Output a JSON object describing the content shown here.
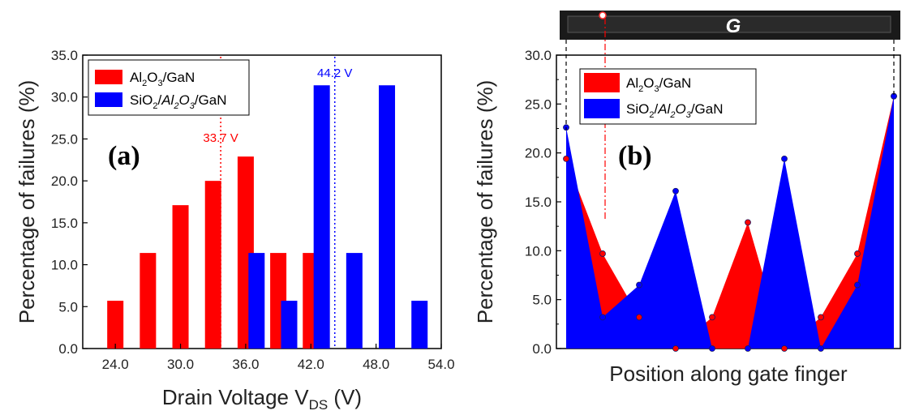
{
  "chart_data": [
    {
      "type": "bar",
      "panel_label": "(a)",
      "xlabel": "Drain Voltage V",
      "xlabel_sub": "DS",
      "xlabel_unit": " (V)",
      "ylabel": "Percentage of failures (%)",
      "xlim": [
        21.0,
        54.0
      ],
      "ylim": [
        0,
        35
      ],
      "xticks": [
        "24.0",
        "30.0",
        "36.0",
        "42.0",
        "48.0",
        "54.0"
      ],
      "xtick_values": [
        24,
        30,
        36,
        42,
        48,
        54
      ],
      "yticks": [
        "0.0",
        "5.0",
        "10.0",
        "15.0",
        "20.0",
        "25.0",
        "30.0",
        "35.0"
      ],
      "ytick_values": [
        0,
        5,
        10,
        15,
        20,
        25,
        30,
        35
      ],
      "series": [
        {
          "name": "Al2O3/GaN",
          "color": "#ff0000",
          "x": [
            24,
            27,
            30,
            33,
            36,
            39,
            42
          ],
          "values": [
            5.7,
            11.4,
            17.1,
            20.0,
            22.9,
            11.4,
            11.4
          ]
        },
        {
          "name": "SiO2/Al2O3/GaN",
          "color": "#0000ff",
          "x": [
            37,
            40,
            43,
            46,
            49,
            52
          ],
          "values": [
            11.4,
            5.7,
            31.4,
            11.4,
            31.4,
            5.7
          ]
        }
      ],
      "legend": [
        {
          "base": "Al",
          "sub1": "2",
          "mid": "O",
          "sub2": "3",
          "rest": "/GaN",
          "color": "#ff0000"
        },
        {
          "pre": "SiO",
          "pre_sub": "2",
          "slash": "/",
          "base": "Al",
          "sub1": "2",
          "mid": "O",
          "sub2": "3",
          "rest": "/GaN",
          "color": "#0000ff"
        }
      ],
      "annotations": [
        {
          "text": "33.7 V",
          "x": 33.7,
          "color": "#ff0000"
        },
        {
          "text": "44.2 V",
          "x": 44.2,
          "color": "#0000ff"
        }
      ]
    },
    {
      "type": "area",
      "panel_label": "(b)",
      "xlabel": "Position along gate finger",
      "ylabel": "Percentage of failures (%)",
      "ylim": [
        0,
        30
      ],
      "yticks": [
        "0.0",
        "5.0",
        "10.0",
        "15.0",
        "20.0",
        "25.0",
        "30.0"
      ],
      "ytick_values": [
        0,
        5,
        10,
        15,
        20,
        25,
        30
      ],
      "positions": [
        1,
        2,
        3,
        4,
        5,
        6,
        7,
        8,
        9,
        10
      ],
      "series": [
        {
          "name": "Al2O3/GaN",
          "color": "#ff0000",
          "values": [
            19.4,
            9.7,
            3.2,
            0,
            3.2,
            12.9,
            0,
            3.2,
            9.7,
            25.8
          ]
        },
        {
          "name": "SiO2/Al2O3/GaN",
          "color": "#0000ff",
          "values": [
            22.6,
            3.2,
            6.5,
            16.1,
            0,
            0,
            19.4,
            0,
            6.5,
            25.8
          ]
        }
      ],
      "gate_label": "G",
      "legend": [
        {
          "base": "Al",
          "sub1": "2",
          "mid": "O",
          "sub2": "3",
          "rest": "/GaN",
          "color": "#ff0000"
        },
        {
          "pre": "SiO",
          "pre_sub": "2",
          "slash": "/",
          "base": "Al",
          "sub1": "2",
          "mid": "O",
          "sub2": "3",
          "rest": "/GaN",
          "color": "#0000ff"
        }
      ]
    }
  ]
}
